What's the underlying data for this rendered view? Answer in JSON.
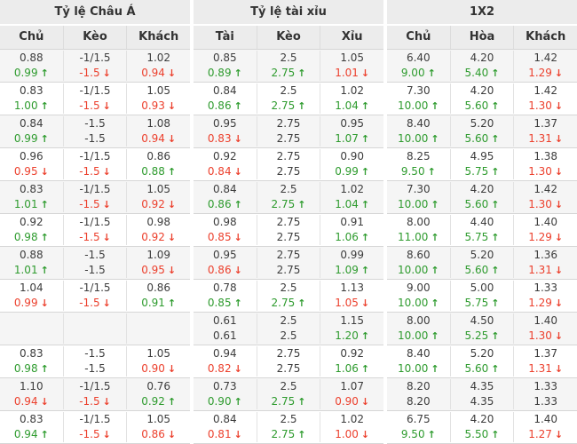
{
  "colors": {
    "up": "#2e9b2e",
    "down": "#ec402d",
    "header_bg": "#ececec",
    "row_alt_bg": "#f5f5f5",
    "text": "#3d3d3d"
  },
  "icons": {
    "up_arrow": "↑",
    "down_arrow": "↓"
  },
  "sections": [
    {
      "title": "Tỷ lệ Châu Á",
      "columns": [
        "Chủ",
        "Kèo",
        "Khách"
      ]
    },
    {
      "title": "Tỷ lệ tài xỉu",
      "columns": [
        "Tài",
        "Kèo",
        "Xỉu"
      ]
    },
    {
      "title": "1X2",
      "columns": [
        "Chủ",
        "Hòa",
        "Khách"
      ]
    }
  ],
  "rows": [
    [
      [
        [
          "0.88",
          "0.99",
          "up"
        ],
        [
          "-1/1.5",
          "-1.5",
          "down"
        ],
        [
          "1.02",
          "0.94",
          "down"
        ]
      ],
      [
        [
          "0.85",
          "0.89",
          "up"
        ],
        [
          "2.5",
          "2.75",
          "up"
        ],
        [
          "1.05",
          "1.01",
          "down"
        ]
      ],
      [
        [
          "6.40",
          "9.00",
          "up"
        ],
        [
          "4.20",
          "5.40",
          "up"
        ],
        [
          "1.42",
          "1.29",
          "down"
        ]
      ]
    ],
    [
      [
        [
          "0.83",
          "1.00",
          "up"
        ],
        [
          "-1/1.5",
          "-1.5",
          "down"
        ],
        [
          "1.05",
          "0.93",
          "down"
        ]
      ],
      [
        [
          "0.84",
          "0.86",
          "up"
        ],
        [
          "2.5",
          "2.75",
          "up"
        ],
        [
          "1.02",
          "1.04",
          "up"
        ]
      ],
      [
        [
          "7.30",
          "10.00",
          "up"
        ],
        [
          "4.20",
          "5.60",
          "up"
        ],
        [
          "1.42",
          "1.30",
          "down"
        ]
      ]
    ],
    [
      [
        [
          "0.84",
          "0.99",
          "up"
        ],
        [
          "-1.5",
          "-1.5",
          ""
        ],
        [
          "1.08",
          "0.94",
          "down"
        ]
      ],
      [
        [
          "0.95",
          "0.83",
          "down"
        ],
        [
          "2.75",
          "2.75",
          ""
        ],
        [
          "0.95",
          "1.07",
          "up"
        ]
      ],
      [
        [
          "8.40",
          "10.00",
          "up"
        ],
        [
          "5.20",
          "5.60",
          "up"
        ],
        [
          "1.37",
          "1.31",
          "down"
        ]
      ]
    ],
    [
      [
        [
          "0.96",
          "0.95",
          "down"
        ],
        [
          "-1/1.5",
          "-1.5",
          "down"
        ],
        [
          "0.86",
          "0.88",
          "up"
        ]
      ],
      [
        [
          "0.92",
          "0.84",
          "down"
        ],
        [
          "2.75",
          "2.75",
          ""
        ],
        [
          "0.90",
          "0.99",
          "up"
        ]
      ],
      [
        [
          "8.25",
          "9.50",
          "up"
        ],
        [
          "4.95",
          "5.75",
          "up"
        ],
        [
          "1.38",
          "1.30",
          "down"
        ]
      ]
    ],
    [
      [
        [
          "0.83",
          "1.01",
          "up"
        ],
        [
          "-1/1.5",
          "-1.5",
          "down"
        ],
        [
          "1.05",
          "0.92",
          "down"
        ]
      ],
      [
        [
          "0.84",
          "0.86",
          "up"
        ],
        [
          "2.5",
          "2.75",
          "up"
        ],
        [
          "1.02",
          "1.04",
          "up"
        ]
      ],
      [
        [
          "7.30",
          "10.00",
          "up"
        ],
        [
          "4.20",
          "5.60",
          "up"
        ],
        [
          "1.42",
          "1.30",
          "down"
        ]
      ]
    ],
    [
      [
        [
          "0.92",
          "0.98",
          "up"
        ],
        [
          "-1/1.5",
          "-1.5",
          "down"
        ],
        [
          "0.98",
          "0.92",
          "down"
        ]
      ],
      [
        [
          "0.98",
          "0.85",
          "down"
        ],
        [
          "2.75",
          "2.75",
          ""
        ],
        [
          "0.91",
          "1.06",
          "up"
        ]
      ],
      [
        [
          "8.00",
          "11.00",
          "up"
        ],
        [
          "4.40",
          "5.75",
          "up"
        ],
        [
          "1.40",
          "1.29",
          "down"
        ]
      ]
    ],
    [
      [
        [
          "0.88",
          "1.01",
          "up"
        ],
        [
          "-1.5",
          "-1.5",
          ""
        ],
        [
          "1.09",
          "0.95",
          "down"
        ]
      ],
      [
        [
          "0.95",
          "0.86",
          "down"
        ],
        [
          "2.75",
          "2.75",
          ""
        ],
        [
          "0.99",
          "1.09",
          "up"
        ]
      ],
      [
        [
          "8.60",
          "10.00",
          "up"
        ],
        [
          "5.20",
          "5.60",
          "up"
        ],
        [
          "1.36",
          "1.31",
          "down"
        ]
      ]
    ],
    [
      [
        [
          "1.04",
          "0.99",
          "down"
        ],
        [
          "-1/1.5",
          "-1.5",
          "down"
        ],
        [
          "0.86",
          "0.91",
          "up"
        ]
      ],
      [
        [
          "0.78",
          "0.85",
          "up"
        ],
        [
          "2.5",
          "2.75",
          "up"
        ],
        [
          "1.13",
          "1.05",
          "down"
        ]
      ],
      [
        [
          "9.00",
          "10.00",
          "up"
        ],
        [
          "5.00",
          "5.75",
          "up"
        ],
        [
          "1.33",
          "1.29",
          "down"
        ]
      ]
    ],
    [
      [
        [
          "",
          "",
          ""
        ],
        [
          "",
          "",
          ""
        ],
        [
          "",
          "",
          ""
        ]
      ],
      [
        [
          "0.61",
          "0.61",
          ""
        ],
        [
          "2.5",
          "2.5",
          ""
        ],
        [
          "1.15",
          "1.20",
          "up"
        ]
      ],
      [
        [
          "8.00",
          "10.00",
          "up"
        ],
        [
          "4.50",
          "5.25",
          "up"
        ],
        [
          "1.40",
          "1.30",
          "down"
        ]
      ]
    ],
    [
      [
        [
          "0.83",
          "0.98",
          "up"
        ],
        [
          "-1.5",
          "-1.5",
          ""
        ],
        [
          "1.05",
          "0.90",
          "down"
        ]
      ],
      [
        [
          "0.94",
          "0.82",
          "down"
        ],
        [
          "2.75",
          "2.75",
          ""
        ],
        [
          "0.92",
          "1.06",
          "up"
        ]
      ],
      [
        [
          "8.40",
          "10.00",
          "up"
        ],
        [
          "5.20",
          "5.60",
          "up"
        ],
        [
          "1.37",
          "1.31",
          "down"
        ]
      ]
    ],
    [
      [
        [
          "1.10",
          "0.94",
          "down"
        ],
        [
          "-1/1.5",
          "-1.5",
          "down"
        ],
        [
          "0.76",
          "0.92",
          "up"
        ]
      ],
      [
        [
          "0.73",
          "0.90",
          "up"
        ],
        [
          "2.5",
          "2.75",
          "up"
        ],
        [
          "1.07",
          "0.90",
          "down"
        ]
      ],
      [
        [
          "8.20",
          "8.20",
          ""
        ],
        [
          "4.35",
          "4.35",
          ""
        ],
        [
          "1.33",
          "1.33",
          ""
        ]
      ]
    ],
    [
      [
        [
          "0.83",
          "0.94",
          "up"
        ],
        [
          "-1/1.5",
          "-1.5",
          "down"
        ],
        [
          "1.05",
          "0.86",
          "down"
        ]
      ],
      [
        [
          "0.84",
          "0.81",
          "down"
        ],
        [
          "2.5",
          "2.75",
          "up"
        ],
        [
          "1.02",
          "1.00",
          "down"
        ]
      ],
      [
        [
          "6.75",
          "9.50",
          "up"
        ],
        [
          "4.20",
          "5.50",
          "up"
        ],
        [
          "1.40",
          "1.27",
          "down"
        ]
      ]
    ]
  ]
}
